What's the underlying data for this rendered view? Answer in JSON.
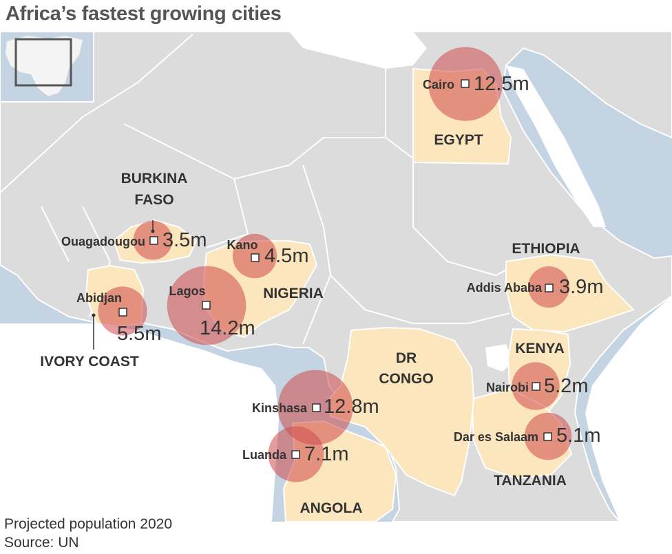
{
  "title": "Africa’s fastest growing cities",
  "footer": {
    "note": "Projected population 2020",
    "source": "Source: UN"
  },
  "colors": {
    "sea": "#c4d4e3",
    "land": "#dcdcdc",
    "highlight": "#fce6bd",
    "bubble": "#cd4b4b",
    "border": "#ffffff"
  },
  "countries": {
    "egypt": "EGYPT",
    "burkina_faso_1": "BURKINA",
    "burkina_faso_2": "FASO",
    "nigeria": "NIGERIA",
    "ethiopia": "ETHIOPIA",
    "ivory_coast": "IVORY COAST",
    "dr_congo_1": "DR",
    "dr_congo_2": "CONGO",
    "kenya": "KENYA",
    "tanzania": "TANZANIA",
    "angola": "ANGOLA"
  },
  "cities": [
    {
      "name": "Cairo",
      "population_label": "12.5m",
      "population_m": 12.5
    },
    {
      "name": "Ouagadougou",
      "population_label": "3.5m",
      "population_m": 3.5
    },
    {
      "name": "Kano",
      "population_label": "4.5m",
      "population_m": 4.5
    },
    {
      "name": "Lagos",
      "population_label": "14.2m",
      "population_m": 14.2
    },
    {
      "name": "Abidjan",
      "population_label": "5.5m",
      "population_m": 5.5
    },
    {
      "name": "Addis Ababa",
      "population_label": "3.9m",
      "population_m": 3.9
    },
    {
      "name": "Nairobi",
      "population_label": "5.2m",
      "population_m": 5.2
    },
    {
      "name": "Kinshasa",
      "population_label": "12.8m",
      "population_m": 12.8
    },
    {
      "name": "Luanda",
      "population_label": "7.1m",
      "population_m": 7.1
    },
    {
      "name": "Dar es Salaam",
      "population_label": "5.1m",
      "population_m": 5.1
    }
  ]
}
